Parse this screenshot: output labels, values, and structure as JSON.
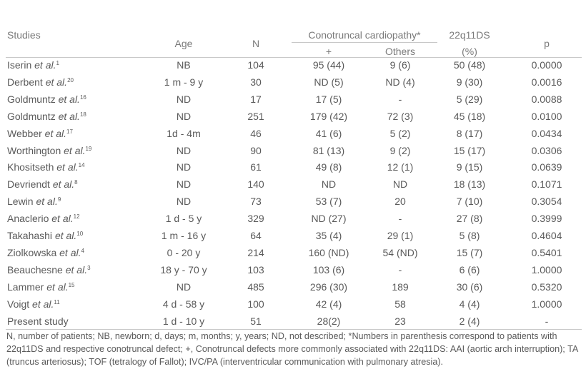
{
  "header": {
    "studies": "Studies",
    "age": "Age",
    "n": "N",
    "conotruncal": "Conotruncal cardiopathy*",
    "plus": "+",
    "others": "Others",
    "deletion": "22q11DS",
    "deletion_unit": "(%)",
    "p": "p"
  },
  "rows": [
    {
      "study": {
        "name": "Iserin",
        "etal": "et al.",
        "ref": "1"
      },
      "cells": [
        "NB",
        "104",
        "95 (44)",
        "9 (6)",
        "50 (48)",
        "0.0000"
      ]
    },
    {
      "study": {
        "name": "Derbent",
        "etal": "et al.",
        "ref": "20"
      },
      "cells": [
        "1 m - 9 y",
        "30",
        "ND (5)",
        "ND (4)",
        "9 (30)",
        "0.0016"
      ]
    },
    {
      "study": {
        "name": "Goldmuntz",
        "etal": "et al.",
        "ref": "16"
      },
      "cells": [
        "ND",
        "17",
        "17 (5)",
        "-",
        "5 (29)",
        "0.0088"
      ]
    },
    {
      "study": {
        "name": "Goldmuntz",
        "etal": "et al.",
        "ref": "18"
      },
      "cells": [
        "ND",
        "251",
        "179 (42)",
        "72 (3)",
        "45 (18)",
        "0.0100"
      ]
    },
    {
      "study": {
        "name": "Webber",
        "etal": "et al.",
        "ref": "17"
      },
      "cells": [
        "1d - 4m",
        "46",
        "41 (6)",
        "5 (2)",
        "8 (17)",
        "0.0434"
      ]
    },
    {
      "study": {
        "name": "Worthington",
        "etal": "et al.",
        "ref": "19"
      },
      "cells": [
        "ND",
        "90",
        "81 (13)",
        "9 (2)",
        "15 (17)",
        "0.0306"
      ]
    },
    {
      "study": {
        "name": "Khositseth",
        "etal": "et al.",
        "ref": "14"
      },
      "cells": [
        "ND",
        "61",
        "49 (8)",
        "12 (1)",
        "9 (15)",
        "0.0639"
      ]
    },
    {
      "study": {
        "name": "Devriendt",
        "etal": "et al.",
        "ref": "8"
      },
      "cells": [
        "ND",
        "140",
        "ND",
        "ND",
        "18 (13)",
        "0.1071"
      ]
    },
    {
      "study": {
        "name": "Lewin",
        "etal": "et al.",
        "ref": "9"
      },
      "cells": [
        "ND",
        "73",
        "53 (7)",
        "20",
        "7 (10)",
        "0.3054"
      ]
    },
    {
      "study": {
        "name": "Anaclerio",
        "etal": "et al.",
        "ref": "12"
      },
      "cells": [
        "1 d - 5 y",
        "329",
        "ND (27)",
        "-",
        "27 (8)",
        "0.3999"
      ]
    },
    {
      "study": {
        "name": "Takahashi",
        "etal": "et al.",
        "ref": "10"
      },
      "cells": [
        "1 m - 16 y",
        "64",
        "35 (4)",
        "29 (1)",
        "5 (8)",
        "0.4604"
      ]
    },
    {
      "study": {
        "name": "Ziolkowska",
        "etal": "et al.",
        "ref": "4"
      },
      "cells": [
        "0 - 20 y",
        "214",
        "160 (ND)",
        "54 (ND)",
        "15 (7)",
        "0.5401"
      ]
    },
    {
      "study": {
        "name": "Beauchesne",
        "etal": "et al.",
        "ref": "3"
      },
      "cells": [
        "18 y - 70 y",
        "103",
        "103 (6)",
        "-",
        "6 (6)",
        "1.0000"
      ]
    },
    {
      "study": {
        "name": "Lammer",
        "etal": "et al.",
        "ref": "15"
      },
      "cells": [
        "ND",
        "485",
        "296 (30)",
        "189",
        "30 (6)",
        "0.5320"
      ]
    },
    {
      "study": {
        "name": "Voigt",
        "etal": "et al.",
        "ref": "11"
      },
      "cells": [
        "4 d - 58 y",
        "100",
        "42 (4)",
        "58",
        "4 (4)",
        "1.0000"
      ]
    },
    {
      "study": {
        "name": "Present study"
      },
      "cells": [
        "1 d - 10 y",
        "51",
        "28(2)",
        "23",
        "2 (4)",
        "-"
      ]
    }
  ],
  "footnote": "N, number of patients; NB, newborn; d, days; m, months; y, years; ND, not described; *Numbers in parenthesis correspond to patients with 22q11DS and respective conotruncal defect; +, Conotruncal defects more commonly associated with 22q11DS: AAI (aortic arch interruption); TA (truncus arteriosus); TOF (tetralogy of Fallot); IVC/PA (interventricular communication with pulmonary atresia)."
}
